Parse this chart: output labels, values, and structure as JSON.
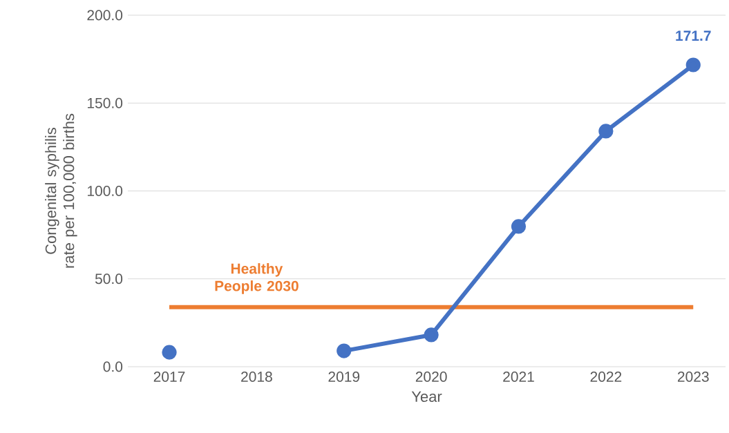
{
  "chart_data": {
    "type": "line",
    "xlabel": "Year",
    "ylabel": "Congenital syphilis rate per 100,000 births",
    "categories": [
      "2017",
      "2018",
      "2019",
      "2020",
      "2021",
      "2022",
      "2023"
    ],
    "series": [
      {
        "color": "#4472c4",
        "values": [
          8.2,
          null,
          9.0,
          18.1,
          79.8,
          134.0,
          171.7
        ],
        "value_labels": [
          null,
          null,
          null,
          null,
          null,
          null,
          "171.7"
        ]
      }
    ],
    "ylim": [
      0,
      200
    ],
    "yticks": [
      {
        "value": 0,
        "label": "0.0"
      },
      {
        "value": 50,
        "label": "50.0"
      },
      {
        "value": 100,
        "label": "100.0"
      },
      {
        "value": 150,
        "label": "150.0"
      },
      {
        "value": 200,
        "label": "200.0"
      }
    ],
    "ref_lines": [
      {
        "axis": "y",
        "value": 33.9,
        "label": "Healthy People 2030",
        "color": "#ed7d31"
      }
    ],
    "grid": "y",
    "marker": "circle",
    "line_style": "solid"
  }
}
